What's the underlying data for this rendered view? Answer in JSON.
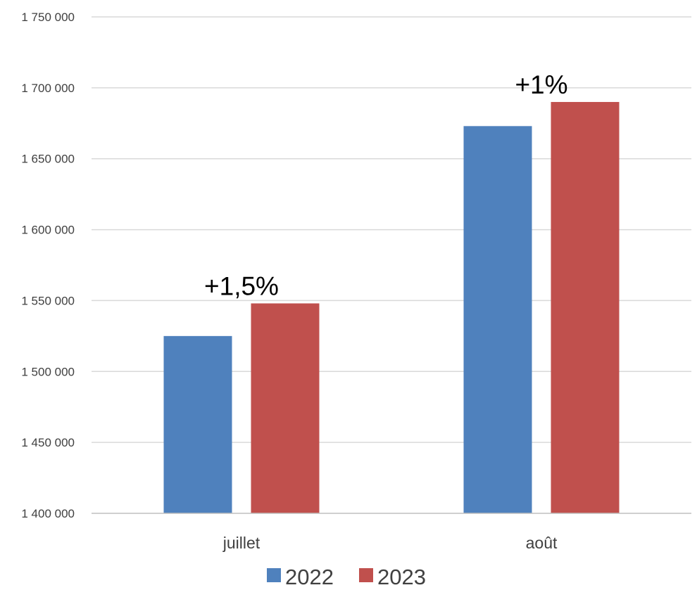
{
  "chart_data": {
    "type": "bar",
    "categories": [
      "juillet",
      "août"
    ],
    "series": [
      {
        "name": "2022",
        "color": "#4F81BD",
        "values": [
          1525000,
          1673000
        ]
      },
      {
        "name": "2023",
        "color": "#C0504D",
        "values": [
          1548000,
          1690000
        ]
      }
    ],
    "annotations": [
      "+1,5%",
      "+1%"
    ],
    "ylim": [
      1400000,
      1750000
    ],
    "yticks": [
      1400000,
      1450000,
      1500000,
      1550000,
      1600000,
      1650000,
      1700000,
      1750000
    ],
    "ytick_labels": [
      "1 400 000",
      "1 450 000",
      "1 500 000",
      "1 550 000",
      "1 600 000",
      "1 650 000",
      "1 700 000",
      "1 750 000"
    ],
    "title": "",
    "xlabel": "",
    "ylabel": "",
    "grid": true,
    "legend_position": "bottom",
    "gridline_color": "#D9D9D9",
    "axis_color": "#BFBFBF"
  }
}
